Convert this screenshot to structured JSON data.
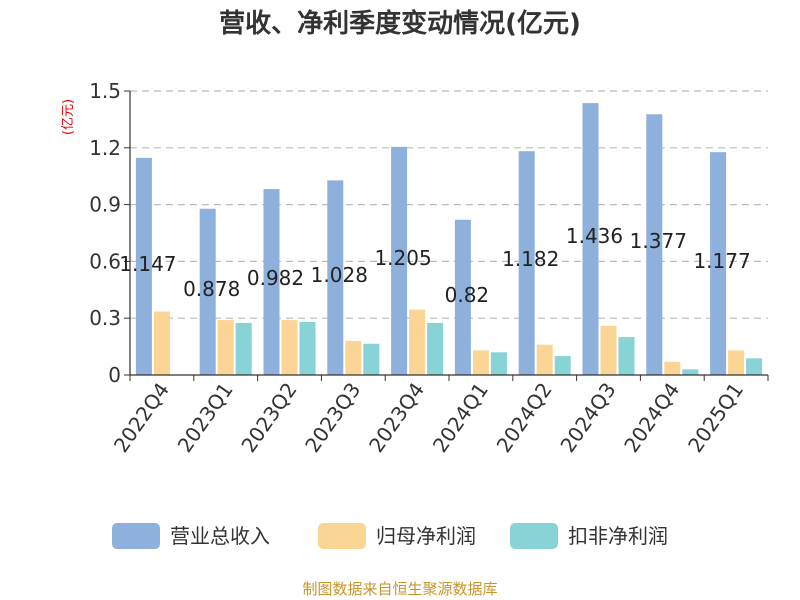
{
  "chart_data": {
    "type": "bar",
    "title": "营收、净利季度变动情况(亿元)",
    "ylabel": "(亿元)",
    "ylim": [
      0,
      1.5
    ],
    "yticks": [
      "0",
      "0.3",
      "0.6",
      "0.9",
      "1.2",
      "1.5"
    ],
    "categories": [
      "2022Q4",
      "2023Q1",
      "2023Q2",
      "2023Q3",
      "2023Q4",
      "2024Q1",
      "2024Q2",
      "2024Q3",
      "2024Q4",
      "2025Q1"
    ],
    "series": [
      {
        "name": "营业总收入",
        "color": "#8eb0dc",
        "values": [
          1.147,
          0.878,
          0.982,
          1.028,
          1.205,
          0.82,
          1.182,
          1.436,
          1.377,
          1.177
        ]
      },
      {
        "name": "归母净利润",
        "color": "#fbd593",
        "values": [
          0.335,
          0.29,
          0.29,
          0.18,
          0.345,
          0.13,
          0.16,
          0.26,
          0.07,
          0.13
        ]
      },
      {
        "name": "扣非净利润",
        "color": "#87d3d6",
        "values": [
          0.0,
          0.275,
          0.28,
          0.165,
          0.275,
          0.12,
          0.1,
          0.2,
          0.03,
          0.088
        ]
      }
    ],
    "data_labels": [
      "1.147",
      "0.878",
      "0.982",
      "1.028",
      "1.205",
      "0.82",
      "1.182",
      "1.436",
      "1.377",
      "1.177"
    ],
    "grid": true,
    "legend_position": "bottom"
  },
  "footer": "制图数据来自恒生聚源数据库"
}
